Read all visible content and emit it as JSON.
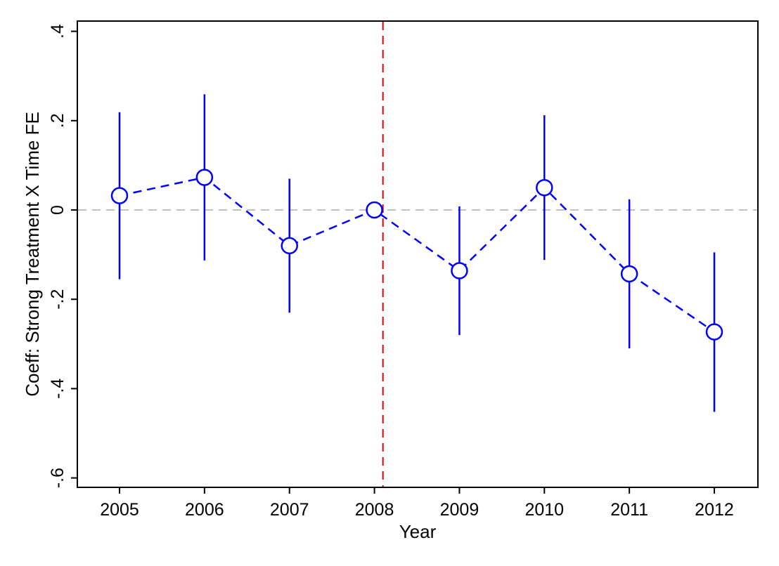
{
  "chart_data": {
    "type": "line",
    "title": "",
    "xlabel": "Year",
    "ylabel": "Coeff: Strong Treatment X Time FE",
    "categories": [
      "2005",
      "2006",
      "2007",
      "2008",
      "2009",
      "2010",
      "2011",
      "2012"
    ],
    "y_ticks": [
      {
        "value": 0.4,
        "label": ".4"
      },
      {
        "value": 0.2,
        "label": ".2"
      },
      {
        "value": 0,
        "label": "0"
      },
      {
        "value": -0.2,
        "label": "-.2"
      },
      {
        "value": -0.4,
        "label": "-.4"
      },
      {
        "value": -0.6,
        "label": "-.6"
      }
    ],
    "ylim": [
      -0.62,
      0.42
    ],
    "series": [
      {
        "values": [
          0.032,
          0.073,
          -0.08,
          0.0,
          -0.136,
          0.05,
          -0.143,
          -0.273
        ],
        "ci_low": [
          -0.155,
          -0.113,
          -0.23,
          0.0,
          -0.28,
          -0.112,
          -0.31,
          -0.452
        ],
        "ci_high": [
          0.219,
          0.259,
          0.07,
          0.0,
          0.008,
          0.212,
          0.024,
          -0.095
        ],
        "color": "#0000ff",
        "line_style": "dashed",
        "marker": "hollow-circle"
      }
    ],
    "reference_lines": {
      "horizontal": {
        "y": 0,
        "color": "#c0c0c0",
        "style": "dashed"
      },
      "vertical": {
        "x_between": [
          "2008",
          "2009"
        ],
        "offset_fraction": 0.1,
        "color": "#e00000",
        "style": "dashed"
      }
    },
    "grid": false,
    "legend": "none"
  }
}
